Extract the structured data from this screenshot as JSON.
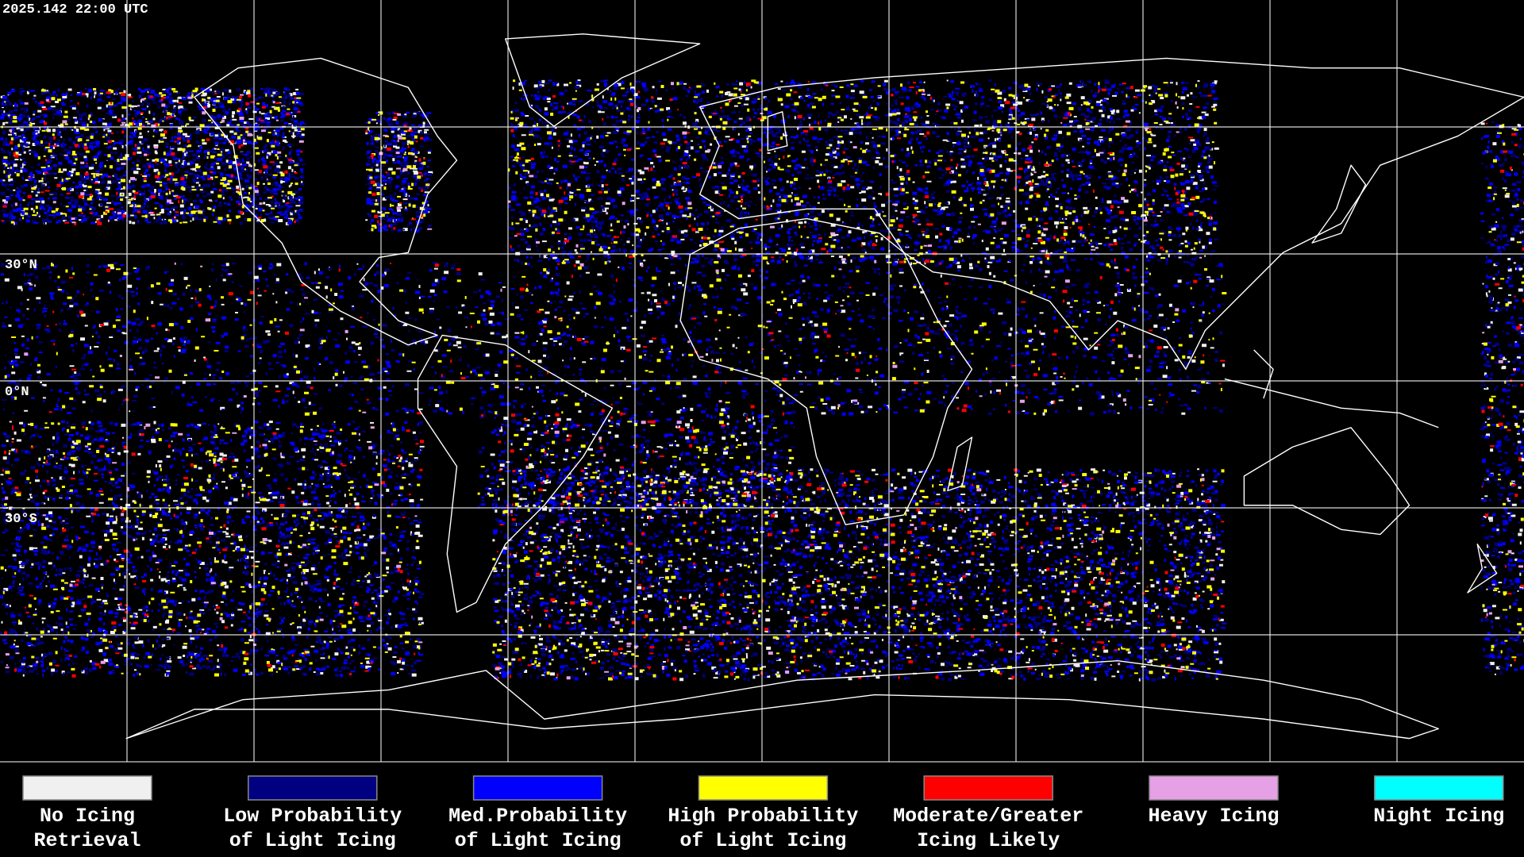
{
  "header": {
    "timestamp": "2025.142 22:00 UTC"
  },
  "map": {
    "latitude_labels": [
      "30°N",
      "0°N",
      "30°S"
    ]
  },
  "legend": {
    "items": [
      {
        "label": [
          "No Icing",
          "Retrieval"
        ],
        "color": "#f0f0f0"
      },
      {
        "label": [
          "Low Probability",
          "of Light Icing"
        ],
        "color": "#000080"
      },
      {
        "label": [
          "Med.Probability",
          "of Light Icing"
        ],
        "color": "#0000ff"
      },
      {
        "label": [
          "High Probability",
          "of Light Icing"
        ],
        "color": "#ffff00"
      },
      {
        "label": [
          "Moderate/Greater",
          "Icing Likely"
        ],
        "color": "#ff0000"
      },
      {
        "label": [
          "Heavy Icing"
        ],
        "color": "#e6a0e6"
      },
      {
        "label": [
          "Night Icing"
        ],
        "color": "#00ffff"
      }
    ]
  }
}
